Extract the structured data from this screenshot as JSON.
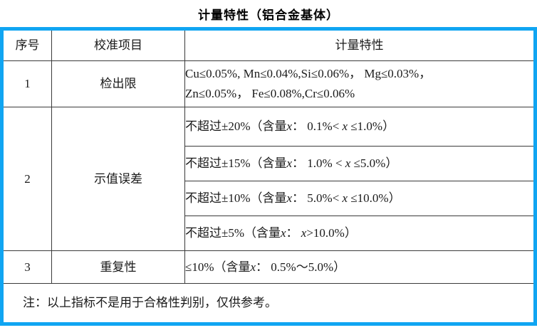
{
  "title": "计量特性（铝合金基体）",
  "colors": {
    "border_blue": "#10a5f2",
    "grid_line": "#3a3a3a",
    "text": "#1a1a1a"
  },
  "table": {
    "headers": {
      "no": "序号",
      "item": "校准项目",
      "spec": "计量特性"
    },
    "rows": {
      "r1": {
        "no": "1",
        "item": "检出限",
        "spec": [
          {
            "t": "Cu≤0.05%, Mn≤0.04%,Si≤0.06%， Mg≤0.03%，\nZn≤0.05%， Fe≤0.08%,Cr≤0.06%"
          }
        ]
      },
      "r2": {
        "no": "2",
        "item": "示值误差",
        "specs": {
          "a": [
            {
              "t": "不超过±20%（含量"
            },
            {
              "t": "x",
              "i": true
            },
            {
              "t": "： 0.1%< "
            },
            {
              "t": "x",
              "i": true
            },
            {
              "t": " ≤1.0%）"
            }
          ],
          "b": [
            {
              "t": "不超过±15%（含量"
            },
            {
              "t": "x",
              "i": true
            },
            {
              "t": "： 1.0% < "
            },
            {
              "t": "x",
              "i": true
            },
            {
              "t": " ≤5.0%）"
            }
          ],
          "c": [
            {
              "t": "不超过±10%（含量"
            },
            {
              "t": "x",
              "i": true
            },
            {
              "t": "： 5.0%< "
            },
            {
              "t": "x",
              "i": true
            },
            {
              "t": " ≤10.0%）"
            }
          ],
          "d": [
            {
              "t": "不超过±5%（含量"
            },
            {
              "t": "x",
              "i": true
            },
            {
              "t": "： "
            },
            {
              "t": "x",
              "i": true
            },
            {
              "t": ">10.0%）"
            }
          ]
        }
      },
      "r3": {
        "no": "3",
        "item": "重复性",
        "spec": [
          {
            "t": "≤10%（含量"
          },
          {
            "t": "x",
            "i": true
          },
          {
            "t": "： 0.5%～5.0%）"
          }
        ]
      }
    },
    "note": "注：以上指标不是用于合格性判别，仅供参考。"
  }
}
